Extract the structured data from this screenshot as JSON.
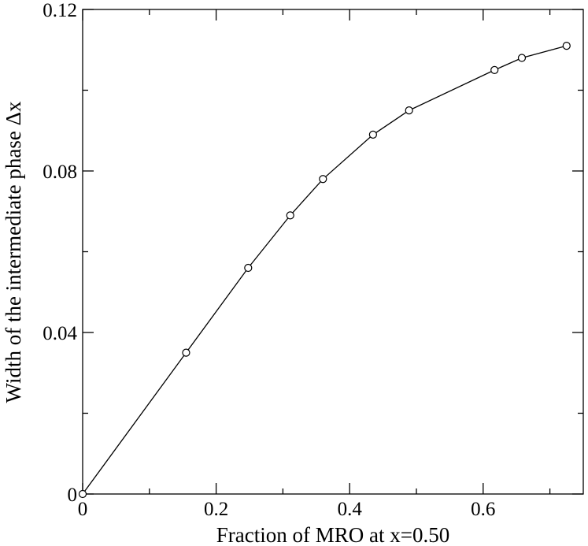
{
  "chart_data": {
    "type": "line",
    "xlabel": "Fraction of MRO at x=0.50",
    "ylabel": "Width of the intermediate phase Δx",
    "xlim": [
      0,
      0.75
    ],
    "ylim": [
      0,
      0.12
    ],
    "x_ticks": [
      0,
      0.2,
      0.4,
      0.6
    ],
    "x_tick_labels": [
      "0",
      "0.2",
      "0.4",
      "0.6"
    ],
    "x_minor_ticks": [
      0.1,
      0.3,
      0.5,
      0.7
    ],
    "y_ticks": [
      0,
      0.04,
      0.08,
      0.12
    ],
    "y_tick_labels": [
      "0",
      "0.04",
      "0.08",
      "0.12"
    ],
    "y_minor_ticks": [
      0.02,
      0.06,
      0.1
    ],
    "grid": false,
    "marker": "open-circle",
    "series": [
      {
        "x": [
          0,
          0.155,
          0.248,
          0.311,
          0.36,
          0.435,
          0.489,
          0.617,
          0.658,
          0.725
        ],
        "y": [
          0,
          0.035,
          0.056,
          0.069,
          0.078,
          0.089,
          0.095,
          0.105,
          0.108,
          0.111
        ]
      }
    ]
  }
}
